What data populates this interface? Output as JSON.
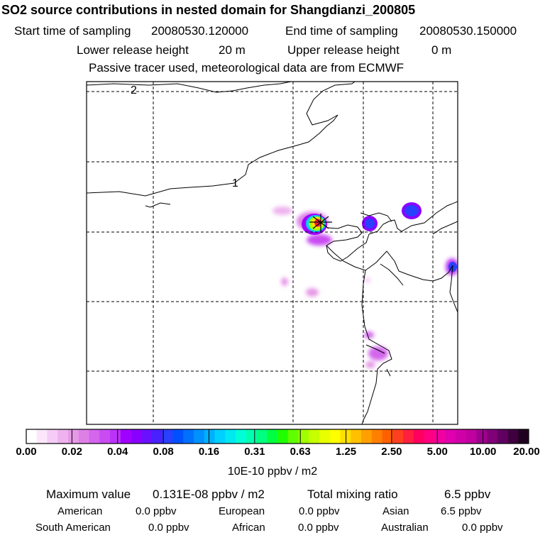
{
  "title": "SO2 source contributions in nested domain for Shangdianzi_200805",
  "header": {
    "start_label": "Start time of sampling",
    "start_value": "20080530.120000",
    "end_label": "End time of sampling",
    "end_value": "20080530.150000",
    "lower_label": "Lower release height",
    "lower_value": "20 m",
    "upper_label": "Upper release height",
    "upper_value": "0 m",
    "note": "Passive tracer used, meteorological data are from ECMWF"
  },
  "map": {
    "contour_labels": [
      "2",
      "1"
    ],
    "receptor_marker": "x-marker"
  },
  "chart_data": {
    "type": "heatmap",
    "colorbar": {
      "ticks": [
        "0.00",
        "0.02",
        "0.04",
        "0.08",
        "0.16",
        "0.31",
        "0.63",
        "1.25",
        "2.50",
        "5.00",
        "10.00",
        "20.00"
      ],
      "unit": "10E-10 ppbv / m2",
      "colors": [
        "#ffffff",
        "#fbe6fb",
        "#f5ccf5",
        "#eeb3ee",
        "#e699e6",
        "#dd80e6",
        "#d366ec",
        "#c94cf2",
        "#bb33f8",
        "#a000ff",
        "#8a00ff",
        "#6a10ff",
        "#4a20ff",
        "#2a40ff",
        "#0050ff",
        "#0070ff",
        "#0090ff",
        "#00b0ff",
        "#00d0ff",
        "#00e8f0",
        "#00ffd8",
        "#00ffb0",
        "#00ff80",
        "#00ff40",
        "#20ff00",
        "#60ff00",
        "#a0ff00",
        "#c8ff00",
        "#e8ff00",
        "#ffff00",
        "#ffe000",
        "#ffc000",
        "#ffa000",
        "#ff8000",
        "#ff6000",
        "#ff4020",
        "#ff2040",
        "#ff0060",
        "#ff0080",
        "#f000a0",
        "#e000b0",
        "#d000a8",
        "#c000a0",
        "#a00090",
        "#800078",
        "#600060",
        "#400040",
        "#200020"
      ]
    },
    "plumes": [
      {
        "name": "source-plume",
        "level": 0.9
      },
      {
        "name": "east-hotspot",
        "level": 0.35
      },
      {
        "name": "northeast-hotspot",
        "level": 0.4
      },
      {
        "name": "edge-hotspot",
        "level": 0.3
      },
      {
        "name": "coastal-plume",
        "level": 0.1
      }
    ]
  },
  "summary": {
    "max_label": "Maximum value",
    "max_value": "0.131E-08 ppbv / m2",
    "total_label": "Total mixing ratio",
    "total_value": "6.5 ppbv",
    "regions": [
      {
        "label": "American",
        "value": "0.0 ppbv"
      },
      {
        "label": "European",
        "value": "0.0 ppbv"
      },
      {
        "label": "Asian",
        "value": "6.5 ppbv"
      },
      {
        "label": "South American",
        "value": "0.0 ppbv"
      },
      {
        "label": "African",
        "value": "0.0 ppbv"
      },
      {
        "label": "Australian",
        "value": "0.0 ppbv"
      }
    ]
  }
}
